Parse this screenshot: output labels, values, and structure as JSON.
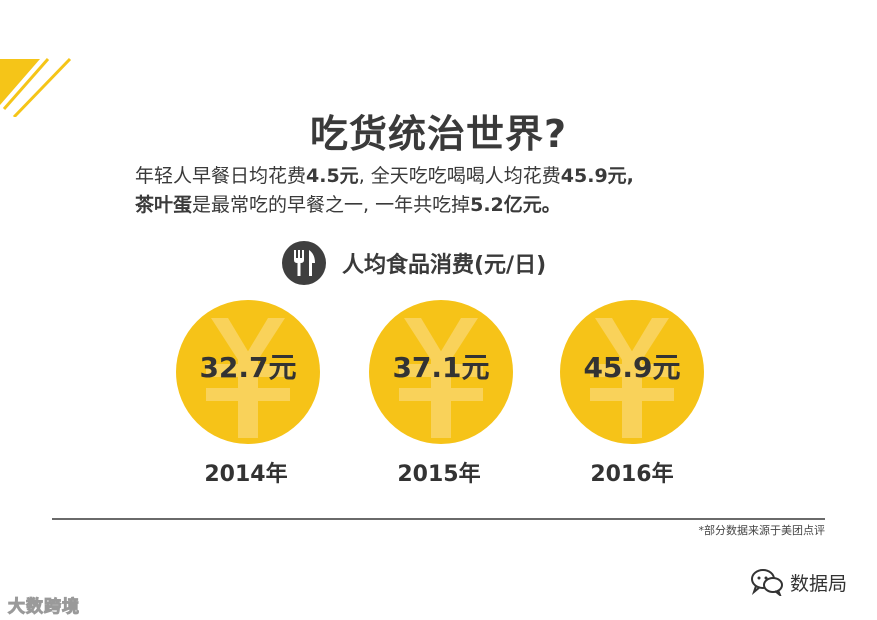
{
  "title": "吃货统治世界?",
  "subtitle": {
    "l1_a": "年轻人早餐日均花费",
    "l1_b": "4.5元",
    "l1_c": ", 全天吃吃喝喝人均花费",
    "l1_d": "45.9元,",
    "l2_a": "茶叶蛋",
    "l2_b": "是最常吃的早餐之一, 一年共吃掉",
    "l2_c": "5.2亿元。"
  },
  "section": {
    "icon": "fork-knife-icon",
    "label": "人均食品消费(元/日)"
  },
  "coins": [
    {
      "amount": "32.7元",
      "year": "2014年"
    },
    {
      "amount": "37.1元",
      "year": "2015年"
    },
    {
      "amount": "45.9元",
      "year": "2016年"
    }
  ],
  "source_note": "*部分数据来源于美团点评",
  "watermark_left": "大数跨境",
  "watermark_right": "数据局",
  "colors": {
    "coin": "#f6c318",
    "stripe": "#f5c518",
    "text": "#3a3a3a"
  }
}
